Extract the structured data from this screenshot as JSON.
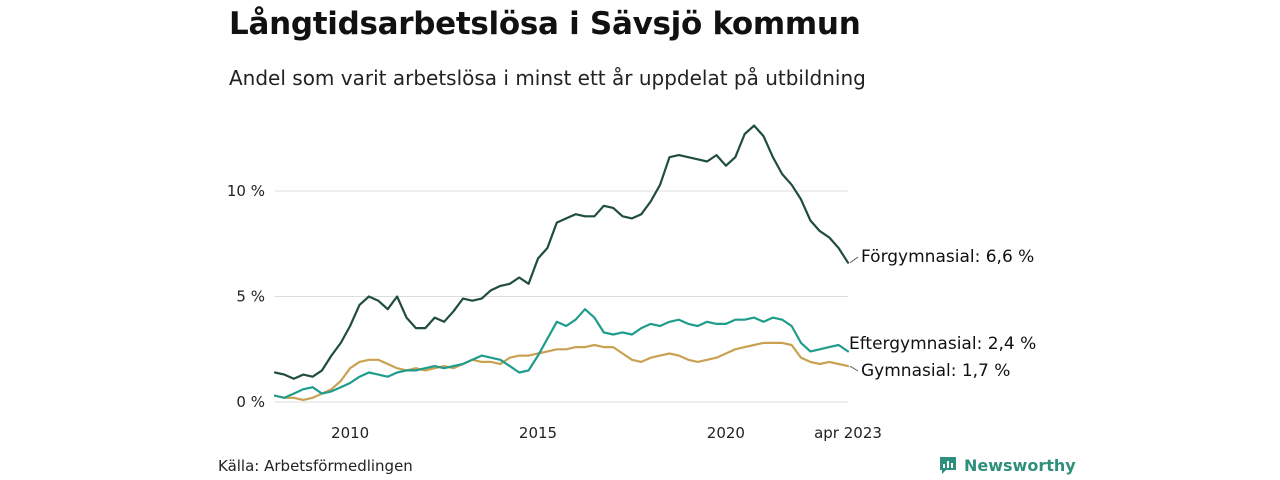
{
  "title": "Långtidsarbetslösa i Sävsjö kommun",
  "subtitle": "Andel som varit arbetslösa i minst ett år uppdelat på utbildning",
  "source": "Källa: Arbetsförmedlingen",
  "brand": "Newsworthy",
  "colors": {
    "forgymnasial": "#1f4d3f",
    "eftergymnasial": "#1f9c8c",
    "gymnasial": "#c9a152",
    "grid": "#dddddd",
    "brand": "#2f8f7d"
  },
  "chart_data": {
    "type": "line",
    "title": "Långtidsarbetslösa i Sävsjö kommun",
    "subtitle": "Andel som varit arbetslösa i minst ett år uppdelat på utbildning",
    "x_ticks": [
      "2010",
      "2015",
      "2020",
      "apr 2023"
    ],
    "y_ticks": [
      "0 %",
      "5 %",
      "10 %"
    ],
    "xlim": [
      "2008-01",
      "2023-04"
    ],
    "ylim": [
      0,
      14
    ],
    "grid": true,
    "series": [
      {
        "name": "Förgymnasial",
        "label": "Förgymnasial: 6,6 %",
        "color": "#1f4d3f",
        "points": [
          [
            "2008-01",
            1.4
          ],
          [
            "2008-04",
            1.3
          ],
          [
            "2008-07",
            1.1
          ],
          [
            "2008-10",
            1.3
          ],
          [
            "2009-01",
            1.2
          ],
          [
            "2009-04",
            1.5
          ],
          [
            "2009-07",
            2.2
          ],
          [
            "2009-10",
            2.8
          ],
          [
            "2010-01",
            3.6
          ],
          [
            "2010-04",
            4.6
          ],
          [
            "2010-07",
            5.0
          ],
          [
            "2010-10",
            4.8
          ],
          [
            "2011-01",
            4.4
          ],
          [
            "2011-04",
            5.0
          ],
          [
            "2011-07",
            4.0
          ],
          [
            "2011-10",
            3.5
          ],
          [
            "2012-01",
            3.5
          ],
          [
            "2012-04",
            4.0
          ],
          [
            "2012-07",
            3.8
          ],
          [
            "2012-10",
            4.3
          ],
          [
            "2013-01",
            4.9
          ],
          [
            "2013-04",
            4.8
          ],
          [
            "2013-07",
            4.9
          ],
          [
            "2013-10",
            5.3
          ],
          [
            "2014-01",
            5.5
          ],
          [
            "2014-04",
            5.6
          ],
          [
            "2014-07",
            5.9
          ],
          [
            "2014-10",
            5.6
          ],
          [
            "2015-01",
            6.8
          ],
          [
            "2015-04",
            7.3
          ],
          [
            "2015-07",
            8.5
          ],
          [
            "2015-10",
            8.7
          ],
          [
            "2016-01",
            8.9
          ],
          [
            "2016-04",
            8.8
          ],
          [
            "2016-07",
            8.8
          ],
          [
            "2016-10",
            9.3
          ],
          [
            "2017-01",
            9.2
          ],
          [
            "2017-04",
            8.8
          ],
          [
            "2017-07",
            8.7
          ],
          [
            "2017-10",
            8.9
          ],
          [
            "2018-01",
            9.5
          ],
          [
            "2018-04",
            10.3
          ],
          [
            "2018-07",
            11.6
          ],
          [
            "2018-10",
            11.7
          ],
          [
            "2019-01",
            11.6
          ],
          [
            "2019-04",
            11.5
          ],
          [
            "2019-07",
            11.4
          ],
          [
            "2019-10",
            11.7
          ],
          [
            "2020-01",
            11.2
          ],
          [
            "2020-04",
            11.6
          ],
          [
            "2020-07",
            12.7
          ],
          [
            "2020-10",
            13.1
          ],
          [
            "2021-01",
            12.6
          ],
          [
            "2021-04",
            11.6
          ],
          [
            "2021-07",
            10.8
          ],
          [
            "2021-10",
            10.3
          ],
          [
            "2022-01",
            9.6
          ],
          [
            "2022-04",
            8.6
          ],
          [
            "2022-07",
            8.1
          ],
          [
            "2022-10",
            7.8
          ],
          [
            "2023-01",
            7.3
          ],
          [
            "2023-04",
            6.6
          ]
        ]
      },
      {
        "name": "Eftergymnasial",
        "label": "Eftergymnasial: 2,4 %",
        "color": "#1f9c8c",
        "points": [
          [
            "2008-01",
            0.3
          ],
          [
            "2008-04",
            0.2
          ],
          [
            "2008-07",
            0.4
          ],
          [
            "2008-10",
            0.6
          ],
          [
            "2009-01",
            0.7
          ],
          [
            "2009-04",
            0.4
          ],
          [
            "2009-07",
            0.5
          ],
          [
            "2009-10",
            0.7
          ],
          [
            "2010-01",
            0.9
          ],
          [
            "2010-04",
            1.2
          ],
          [
            "2010-07",
            1.4
          ],
          [
            "2010-10",
            1.3
          ],
          [
            "2011-01",
            1.2
          ],
          [
            "2011-04",
            1.4
          ],
          [
            "2011-07",
            1.5
          ],
          [
            "2011-10",
            1.5
          ],
          [
            "2012-01",
            1.6
          ],
          [
            "2012-04",
            1.7
          ],
          [
            "2012-07",
            1.6
          ],
          [
            "2012-10",
            1.7
          ],
          [
            "2013-01",
            1.8
          ],
          [
            "2013-04",
            2.0
          ],
          [
            "2013-07",
            2.2
          ],
          [
            "2013-10",
            2.1
          ],
          [
            "2014-01",
            2.0
          ],
          [
            "2014-04",
            1.7
          ],
          [
            "2014-07",
            1.4
          ],
          [
            "2014-10",
            1.5
          ],
          [
            "2015-01",
            2.2
          ],
          [
            "2015-04",
            3.0
          ],
          [
            "2015-07",
            3.8
          ],
          [
            "2015-10",
            3.6
          ],
          [
            "2016-01",
            3.9
          ],
          [
            "2016-04",
            4.4
          ],
          [
            "2016-07",
            4.0
          ],
          [
            "2016-10",
            3.3
          ],
          [
            "2017-01",
            3.2
          ],
          [
            "2017-04",
            3.3
          ],
          [
            "2017-07",
            3.2
          ],
          [
            "2017-10",
            3.5
          ],
          [
            "2018-01",
            3.7
          ],
          [
            "2018-04",
            3.6
          ],
          [
            "2018-07",
            3.8
          ],
          [
            "2018-10",
            3.9
          ],
          [
            "2019-01",
            3.7
          ],
          [
            "2019-04",
            3.6
          ],
          [
            "2019-07",
            3.8
          ],
          [
            "2019-10",
            3.7
          ],
          [
            "2020-01",
            3.7
          ],
          [
            "2020-04",
            3.9
          ],
          [
            "2020-07",
            3.9
          ],
          [
            "2020-10",
            4.0
          ],
          [
            "2021-01",
            3.8
          ],
          [
            "2021-04",
            4.0
          ],
          [
            "2021-07",
            3.9
          ],
          [
            "2021-10",
            3.6
          ],
          [
            "2022-01",
            2.8
          ],
          [
            "2022-04",
            2.4
          ],
          [
            "2022-07",
            2.5
          ],
          [
            "2022-10",
            2.6
          ],
          [
            "2023-01",
            2.7
          ],
          [
            "2023-04",
            2.4
          ]
        ]
      },
      {
        "name": "Gymnasial",
        "label": "Gymnasial: 1,7 %",
        "color": "#c9a152",
        "points": [
          [
            "2008-01",
            0.3
          ],
          [
            "2008-04",
            0.2
          ],
          [
            "2008-07",
            0.2
          ],
          [
            "2008-10",
            0.1
          ],
          [
            "2009-01",
            0.2
          ],
          [
            "2009-04",
            0.4
          ],
          [
            "2009-07",
            0.6
          ],
          [
            "2009-10",
            1.0
          ],
          [
            "2010-01",
            1.6
          ],
          [
            "2010-04",
            1.9
          ],
          [
            "2010-07",
            2.0
          ],
          [
            "2010-10",
            2.0
          ],
          [
            "2011-01",
            1.8
          ],
          [
            "2011-04",
            1.6
          ],
          [
            "2011-07",
            1.5
          ],
          [
            "2011-10",
            1.6
          ],
          [
            "2012-01",
            1.5
          ],
          [
            "2012-04",
            1.6
          ],
          [
            "2012-07",
            1.7
          ],
          [
            "2012-10",
            1.6
          ],
          [
            "2013-01",
            1.8
          ],
          [
            "2013-04",
            2.0
          ],
          [
            "2013-07",
            1.9
          ],
          [
            "2013-10",
            1.9
          ],
          [
            "2014-01",
            1.8
          ],
          [
            "2014-04",
            2.1
          ],
          [
            "2014-07",
            2.2
          ],
          [
            "2014-10",
            2.2
          ],
          [
            "2015-01",
            2.3
          ],
          [
            "2015-04",
            2.4
          ],
          [
            "2015-07",
            2.5
          ],
          [
            "2015-10",
            2.5
          ],
          [
            "2016-01",
            2.6
          ],
          [
            "2016-04",
            2.6
          ],
          [
            "2016-07",
            2.7
          ],
          [
            "2016-10",
            2.6
          ],
          [
            "2017-01",
            2.6
          ],
          [
            "2017-04",
            2.3
          ],
          [
            "2017-07",
            2.0
          ],
          [
            "2017-10",
            1.9
          ],
          [
            "2018-01",
            2.1
          ],
          [
            "2018-04",
            2.2
          ],
          [
            "2018-07",
            2.3
          ],
          [
            "2018-10",
            2.2
          ],
          [
            "2019-01",
            2.0
          ],
          [
            "2019-04",
            1.9
          ],
          [
            "2019-07",
            2.0
          ],
          [
            "2019-10",
            2.1
          ],
          [
            "2020-01",
            2.3
          ],
          [
            "2020-04",
            2.5
          ],
          [
            "2020-07",
            2.6
          ],
          [
            "2020-10",
            2.7
          ],
          [
            "2021-01",
            2.8
          ],
          [
            "2021-04",
            2.8
          ],
          [
            "2021-07",
            2.8
          ],
          [
            "2021-10",
            2.7
          ],
          [
            "2022-01",
            2.1
          ],
          [
            "2022-04",
            1.9
          ],
          [
            "2022-07",
            1.8
          ],
          [
            "2022-10",
            1.9
          ],
          [
            "2023-01",
            1.8
          ],
          [
            "2023-04",
            1.7
          ]
        ]
      }
    ]
  }
}
